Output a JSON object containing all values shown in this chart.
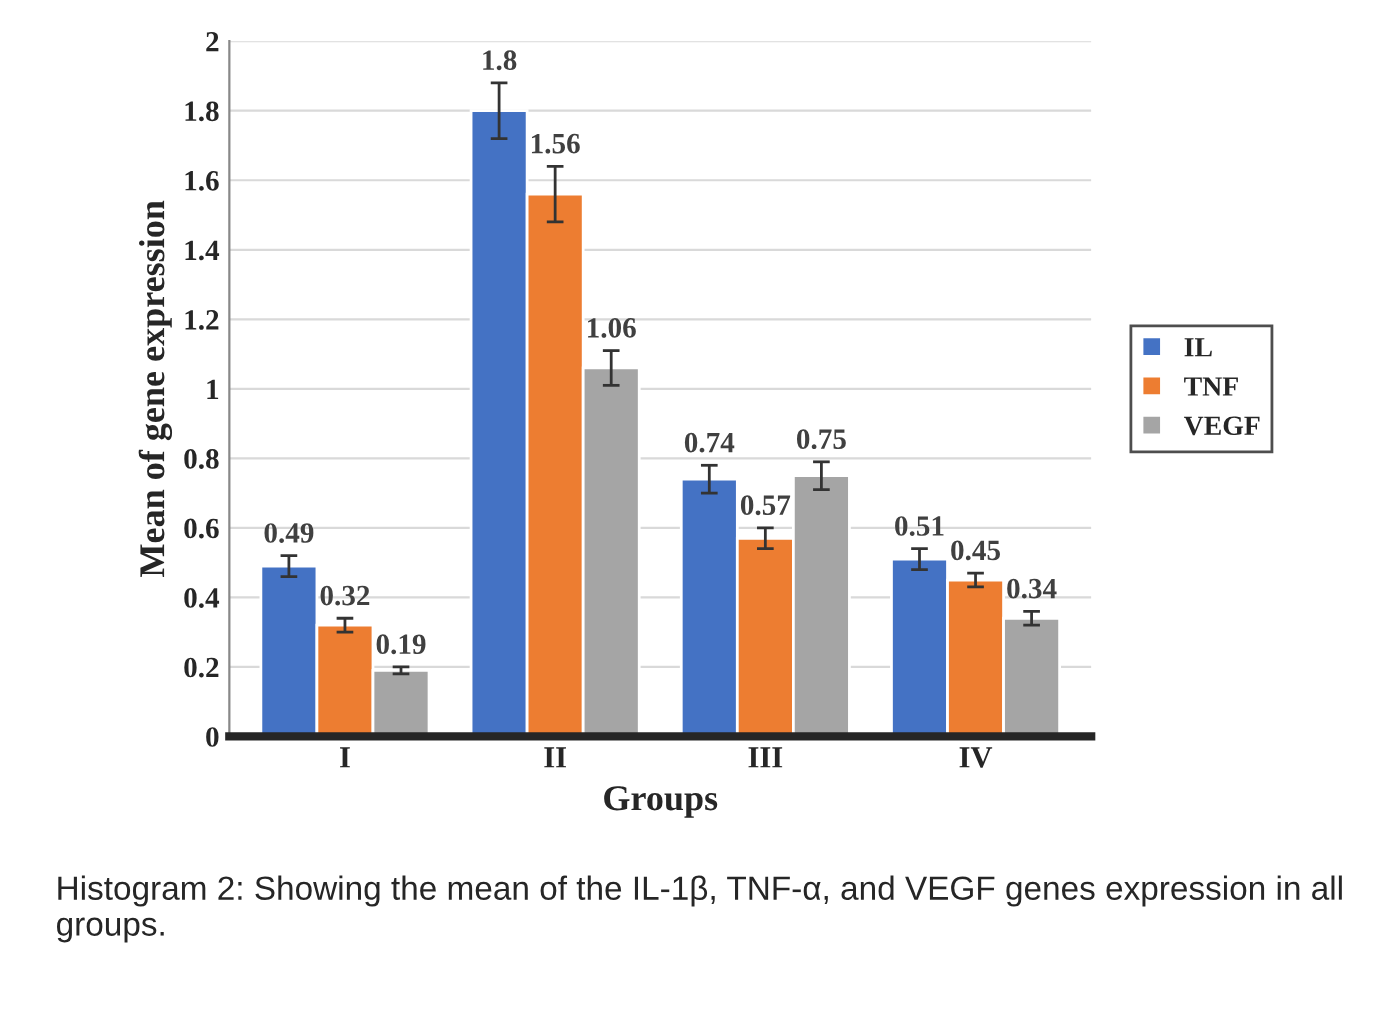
{
  "chart_data": {
    "type": "bar",
    "xlabel": "Groups",
    "ylabel": "Mean of gene expression",
    "categories": [
      "I",
      "II",
      "III",
      "IV"
    ],
    "series": [
      {
        "name": "IL",
        "color": "#4472c4",
        "values": [
          0.49,
          1.8,
          0.74,
          0.51
        ],
        "errors": [
          0.03,
          0.08,
          0.04,
          0.03
        ]
      },
      {
        "name": "TNF",
        "color": "#ed7d31",
        "values": [
          0.32,
          1.56,
          0.57,
          0.45
        ],
        "errors": [
          0.02,
          0.08,
          0.03,
          0.02
        ]
      },
      {
        "name": "VEGF",
        "color": "#a5a5a5",
        "values": [
          0.19,
          1.06,
          0.75,
          0.34
        ],
        "errors": [
          0.01,
          0.05,
          0.04,
          0.02
        ]
      }
    ],
    "ylim": [
      0,
      2
    ],
    "yticks": [
      0,
      0.2,
      0.4,
      0.6,
      0.8,
      1,
      1.2,
      1.4,
      1.6,
      1.8,
      2
    ],
    "data_labels": true,
    "grid": "y",
    "legend": "right",
    "annotations": [
      "Histogram 2: Showing the mean of the IL-1β, TNF-α, and VEGF genes expression in all groups."
    ]
  }
}
